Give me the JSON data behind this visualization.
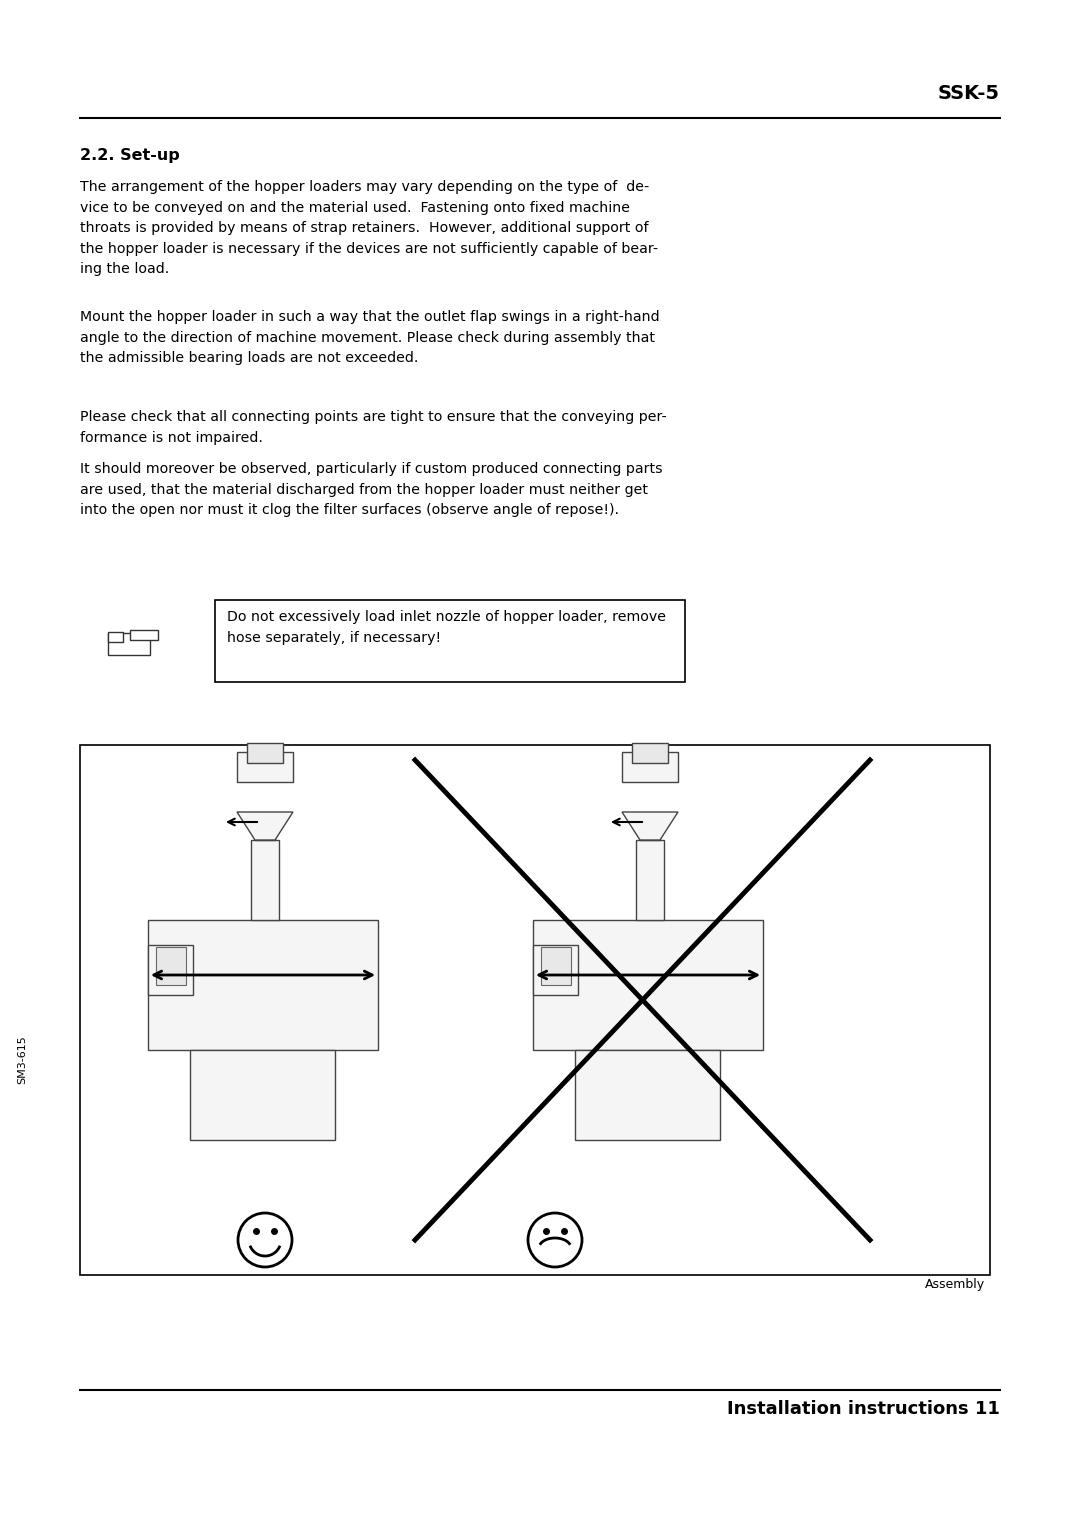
{
  "title_right": "SSK-5",
  "section_heading": "2.2. Set-up",
  "para1": "The arrangement of the hopper loaders may vary depending on the type of  de-\nvice to be conveyed on and the material used.  Fastening onto fixed machine\nthroats is provided by means of strap retainers.  However, additional support of\nthe hopper loader is necessary if the devices are not sufficiently capable of bear-\ning the load.",
  "para2": "Mount the hopper loader in such a way that the outlet flap swings in a right-hand\nangle to the direction of machine movement. Please check during assembly that\nthe admissible bearing loads are not exceeded.",
  "para3": "Please check that all connecting points are tight to ensure that the conveying per-\nformance is not impaired.",
  "para4": "It should moreover be observed, particularly if custom produced connecting parts\nare used, that the material discharged from the hopper loader must neither get\ninto the open nor must it clog the filter surfaces (observe angle of repose!).",
  "note_text": "Do not excessively load inlet nozzle of hopper loader, remove\nhose separately, if necessary!",
  "footer_left": "SM3-615",
  "footer_caption": "Assembly",
  "footer_right": "Installation instructions 11",
  "bg_color": "#ffffff",
  "text_color": "#000000"
}
